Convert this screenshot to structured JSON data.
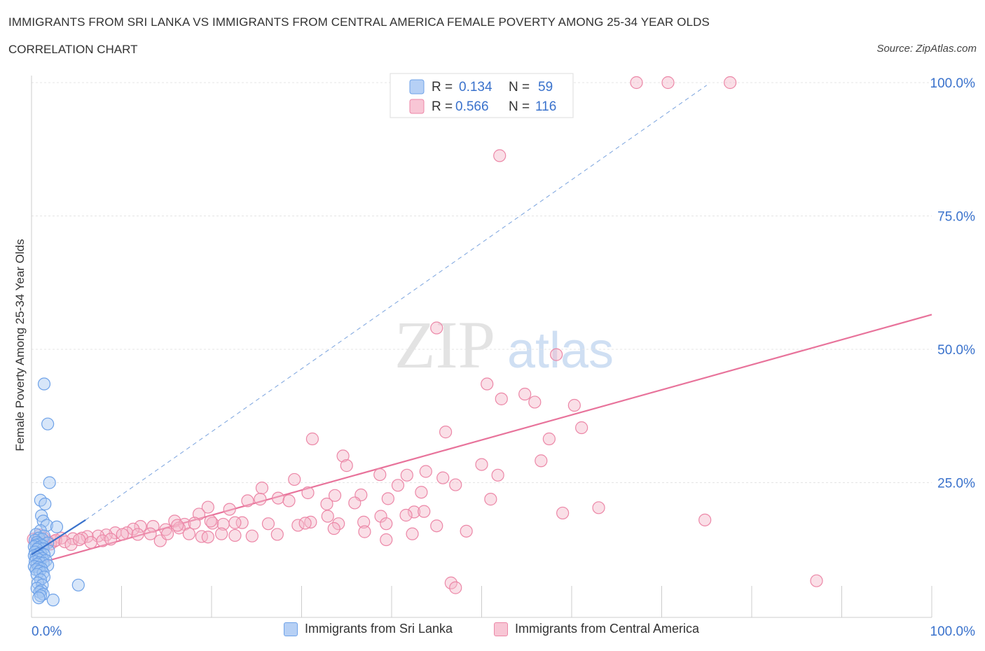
{
  "header": {
    "title": "IMMIGRANTS FROM SRI LANKA VS IMMIGRANTS FROM CENTRAL AMERICA FEMALE POVERTY AMONG 25-34 YEAR OLDS",
    "subtitle": "CORRELATION CHART",
    "source": "Source: ZipAtlas.com"
  },
  "watermark": {
    "zip": "ZIP",
    "atlas": "atlas"
  },
  "chart_data": {
    "type": "scatter",
    "title": "IMMIGRANTS FROM SRI LANKA VS IMMIGRANTS FROM CENTRAL AMERICA FEMALE POVERTY AMONG 25-34 YEAR OLDS",
    "xlabel": "",
    "ylabel": "Female Poverty Among 25-34 Year Olds",
    "xlim": [
      0,
      100
    ],
    "ylim": [
      0,
      100
    ],
    "x_tick_labels": [
      "0.0%",
      "100.0%"
    ],
    "y_ticks": [
      {
        "value": 100,
        "label": "100.0%"
      },
      {
        "value": 75,
        "label": "75.0%"
      },
      {
        "value": 50,
        "label": "50.0%"
      },
      {
        "value": 25,
        "label": "25.0%"
      }
    ],
    "grid": true,
    "legend_stats": [
      {
        "r_label": "R =",
        "r_value": "0.134",
        "n_label": "N =",
        "n_value": "59"
      },
      {
        "r_label": "R =",
        "r_value": "0.566",
        "n_label": "N =",
        "n_value": "116"
      }
    ],
    "series": [
      {
        "name": "Immigrants from Sri Lanka",
        "color": "#6fa2e8",
        "fill": "#a7c7f2",
        "trend": {
          "x": [
            0,
            6
          ],
          "y": [
            11.5,
            18.0
          ],
          "color": "#3a72cc"
        },
        "trend_extended": {
          "x": [
            6,
            75
          ],
          "y": [
            18.0,
            99.5
          ],
          "color": "#7aa3de"
        },
        "points": [
          [
            1.4,
            43.5
          ],
          [
            1.8,
            36
          ],
          [
            2.0,
            25
          ],
          [
            1.0,
            21.7
          ],
          [
            1.5,
            21
          ],
          [
            1.1,
            18.8
          ],
          [
            1.3,
            17.8
          ],
          [
            1.7,
            17
          ],
          [
            2.8,
            16.7
          ],
          [
            1.0,
            16
          ],
          [
            0.5,
            15.3
          ],
          [
            1.4,
            15
          ],
          [
            0.8,
            14.6
          ],
          [
            1.2,
            14.4
          ],
          [
            0.4,
            14.2
          ],
          [
            0.6,
            13.8
          ],
          [
            1.8,
            13.7
          ],
          [
            0.9,
            13.5
          ],
          [
            0.5,
            13.3
          ],
          [
            1.2,
            13.2
          ],
          [
            0.3,
            13
          ],
          [
            0.8,
            12.8
          ],
          [
            1.3,
            12.6
          ],
          [
            0.6,
            12.5
          ],
          [
            1.9,
            12.2
          ],
          [
            0.4,
            12
          ],
          [
            1.0,
            11.8
          ],
          [
            0.7,
            11.6
          ],
          [
            1.4,
            11.5
          ],
          [
            0.3,
            11.3
          ],
          [
            0.9,
            11.2
          ],
          [
            0.5,
            11
          ],
          [
            1.2,
            10.8
          ],
          [
            0.8,
            10.6
          ],
          [
            1.6,
            10.4
          ],
          [
            0.4,
            10.2
          ],
          [
            0.9,
            10
          ],
          [
            1.3,
            9.9
          ],
          [
            0.6,
            9.7
          ],
          [
            1.8,
            9.5
          ],
          [
            0.3,
            9.3
          ],
          [
            0.8,
            9.1
          ],
          [
            1.1,
            8.9
          ],
          [
            0.5,
            8.7
          ],
          [
            0.9,
            8.4
          ],
          [
            1.3,
            8.1
          ],
          [
            0.6,
            7.8
          ],
          [
            1.4,
            7.3
          ],
          [
            1.0,
            6.8
          ],
          [
            0.7,
            6.2
          ],
          [
            1.2,
            5.8
          ],
          [
            0.6,
            5.2
          ],
          [
            1.1,
            4.8
          ],
          [
            0.9,
            4.5
          ],
          [
            1.3,
            4.1
          ],
          [
            1.0,
            3.8
          ],
          [
            0.8,
            3.4
          ],
          [
            2.4,
            3.0
          ],
          [
            5.2,
            5.8
          ]
        ]
      },
      {
        "name": "Immigrants from Central America",
        "color": "#ec87a7",
        "fill": "#f5b8ca",
        "trend": {
          "x": [
            0,
            100
          ],
          "y": [
            9.5,
            56.5
          ],
          "color": "#e8739b"
        },
        "points": [
          [
            67.2,
            100
          ],
          [
            70.7,
            100
          ],
          [
            77.6,
            100
          ],
          [
            52.0,
            86.3
          ],
          [
            45.0,
            54
          ],
          [
            58.3,
            49
          ],
          [
            50.6,
            43.5
          ],
          [
            52.2,
            40.7
          ],
          [
            54.8,
            41.6
          ],
          [
            55.9,
            40.1
          ],
          [
            60.3,
            39.5
          ],
          [
            46.0,
            34.5
          ],
          [
            61.1,
            35.3
          ],
          [
            57.5,
            33.2
          ],
          [
            31.2,
            33.2
          ],
          [
            34.6,
            30.0
          ],
          [
            35.0,
            28.2
          ],
          [
            50.0,
            28.4
          ],
          [
            56.6,
            29.1
          ],
          [
            43.8,
            27.1
          ],
          [
            38.7,
            26.5
          ],
          [
            51.8,
            26.4
          ],
          [
            29.2,
            25.6
          ],
          [
            41.7,
            26.4
          ],
          [
            40.7,
            24.5
          ],
          [
            45.7,
            25.9
          ],
          [
            47.1,
            24.6
          ],
          [
            43.3,
            23.2
          ],
          [
            25.6,
            24.0
          ],
          [
            27.4,
            22.1
          ],
          [
            30.7,
            23.1
          ],
          [
            33.7,
            22.6
          ],
          [
            36.6,
            22.7
          ],
          [
            39.6,
            22.0
          ],
          [
            25.4,
            21.9
          ],
          [
            24.0,
            21.6
          ],
          [
            28.6,
            21.6
          ],
          [
            32.8,
            21.0
          ],
          [
            35.9,
            21.2
          ],
          [
            42.5,
            19.5
          ],
          [
            38.8,
            18.7
          ],
          [
            43.6,
            19.6
          ],
          [
            51.0,
            21.9
          ],
          [
            59.0,
            19.3
          ],
          [
            63.0,
            20.3
          ],
          [
            74.8,
            18.0
          ],
          [
            19.6,
            20.4
          ],
          [
            22.0,
            20.0
          ],
          [
            18.6,
            19.1
          ],
          [
            20.1,
            17.4
          ],
          [
            23.4,
            17.5
          ],
          [
            26.3,
            17.3
          ],
          [
            29.6,
            17.0
          ],
          [
            31.0,
            17.6
          ],
          [
            32.9,
            18.7
          ],
          [
            34.1,
            17.3
          ],
          [
            36.9,
            17.6
          ],
          [
            39.4,
            17.3
          ],
          [
            41.6,
            18.9
          ],
          [
            45.0,
            16.9
          ],
          [
            15.9,
            17.8
          ],
          [
            17.0,
            17.2
          ],
          [
            18.1,
            17.4
          ],
          [
            19.9,
            17.8
          ],
          [
            21.3,
            17.2
          ],
          [
            22.6,
            17.5
          ],
          [
            13.5,
            16.8
          ],
          [
            14.9,
            16.2
          ],
          [
            16.4,
            16.5
          ],
          [
            12.1,
            16.8
          ],
          [
            11.3,
            16.3
          ],
          [
            9.3,
            15.6
          ],
          [
            8.3,
            15.2
          ],
          [
            10.6,
            15.6
          ],
          [
            7.4,
            15.0
          ],
          [
            6.2,
            14.9
          ],
          [
            5.6,
            14.6
          ],
          [
            4.6,
            14.5
          ],
          [
            3.3,
            14.6
          ],
          [
            2.5,
            14.0
          ],
          [
            1.8,
            14.0
          ],
          [
            1.3,
            13.9
          ],
          [
            0.6,
            14.0
          ],
          [
            0.2,
            14.4
          ],
          [
            0.9,
            15.2
          ],
          [
            1.4,
            14.6
          ],
          [
            2.1,
            13.5
          ],
          [
            2.7,
            14.2
          ],
          [
            3.7,
            13.9
          ],
          [
            4.4,
            13.4
          ],
          [
            5.3,
            14.3
          ],
          [
            6.6,
            13.8
          ],
          [
            7.9,
            14.1
          ],
          [
            8.8,
            14.4
          ],
          [
            10.1,
            15.3
          ],
          [
            11.8,
            15.3
          ],
          [
            13.2,
            15.4
          ],
          [
            14.3,
            14.1
          ],
          [
            15.1,
            15.4
          ],
          [
            16.2,
            17.0
          ],
          [
            17.5,
            15.4
          ],
          [
            18.9,
            14.9
          ],
          [
            19.6,
            14.8
          ],
          [
            21.1,
            15.4
          ],
          [
            22.6,
            15.1
          ],
          [
            24.5,
            15.0
          ],
          [
            27.3,
            15.3
          ],
          [
            30.4,
            17.4
          ],
          [
            33.6,
            16.4
          ],
          [
            37.0,
            15.8
          ],
          [
            39.4,
            14.3
          ],
          [
            42.3,
            15.4
          ],
          [
            48.3,
            15.9
          ],
          [
            46.6,
            6.2
          ],
          [
            47.1,
            5.3
          ],
          [
            87.2,
            6.6
          ]
        ]
      }
    ]
  },
  "legend_bottom": [
    {
      "label": "Immigrants from Sri Lanka"
    },
    {
      "label": "Immigrants from Central America"
    }
  ]
}
